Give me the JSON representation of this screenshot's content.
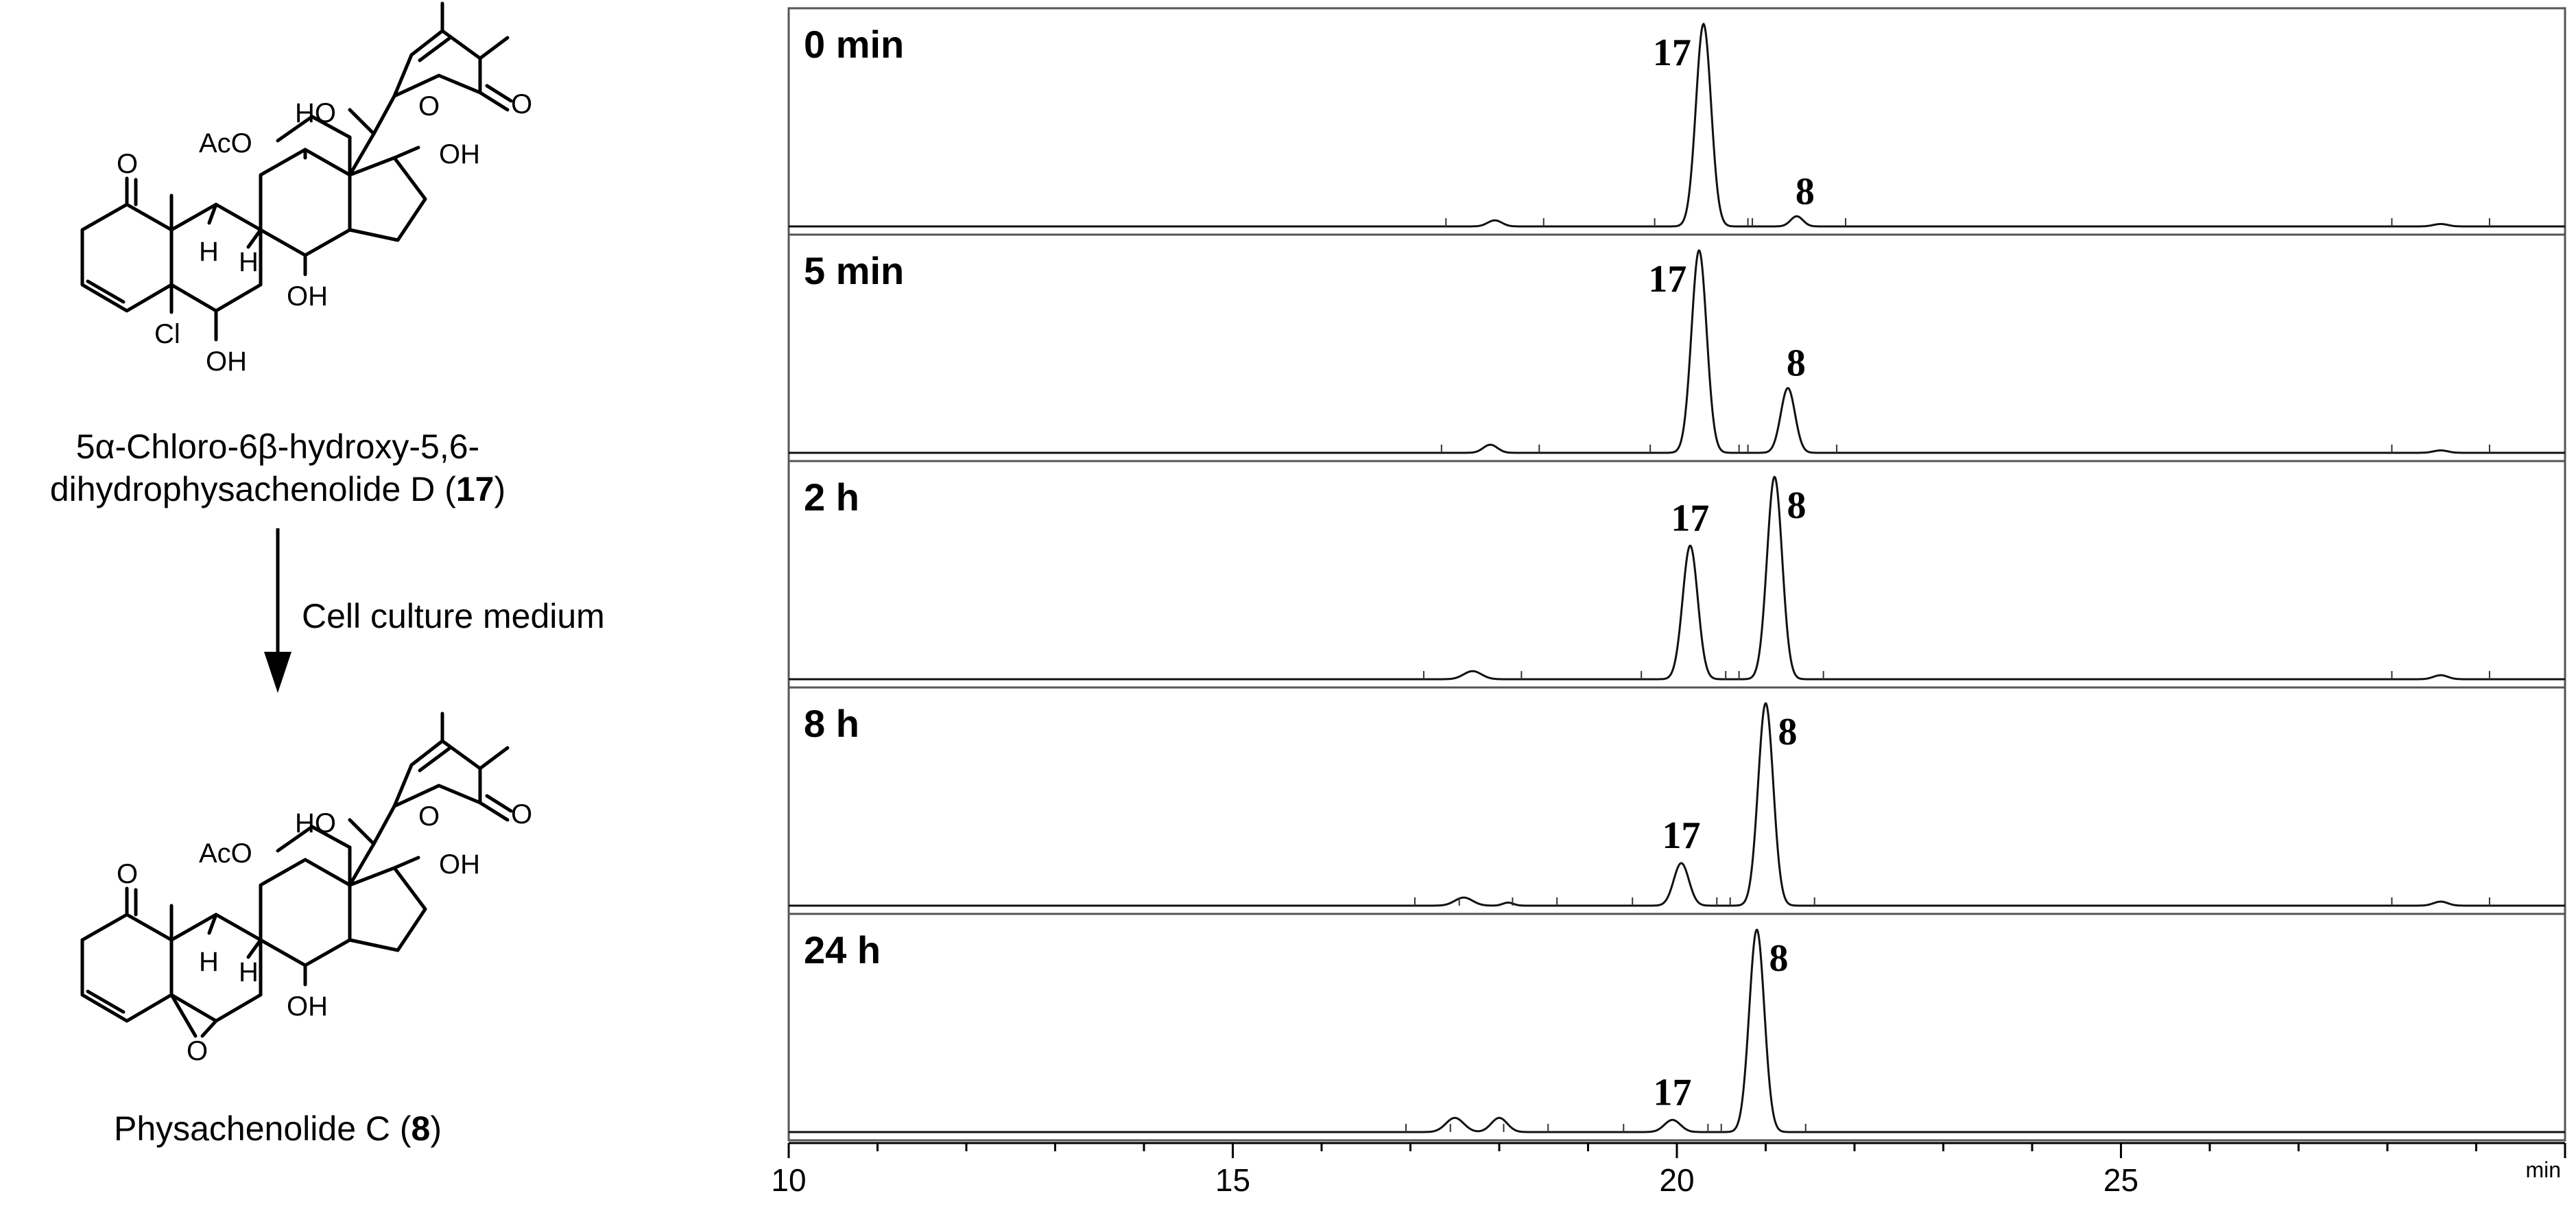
{
  "scheme": {
    "compound_17_name_line1": "5α-Chloro-6β-hydroxy-5,6-",
    "compound_17_name_line2": "dihydrophysachenolide D (",
    "compound_17_number": "17",
    "compound_17_close": ")",
    "arrow_label": "Cell culture medium",
    "compound_8_name": "Physachenolide C (",
    "compound_8_number": "8",
    "compound_8_close": ")",
    "struct_labels": {
      "acetoxy": "AcO",
      "ho": "HO",
      "oh": "OH",
      "o": "O",
      "h": "H",
      "cl": "Cl"
    }
  },
  "chart_data": {
    "type": "line",
    "xlim": [
      10,
      30
    ],
    "x_ticks": [
      10,
      15,
      20,
      25
    ],
    "x_unit": "min",
    "panels": [
      {
        "label": "0 min",
        "peaks": [
          {
            "x": 17.95,
            "h": 0.03,
            "w": 0.08
          },
          {
            "x": 20.3,
            "h": 1.0,
            "w": 0.085,
            "label": "17"
          },
          {
            "x": 21.35,
            "h": 0.05,
            "w": 0.07,
            "label": "8"
          },
          {
            "x": 28.6,
            "h": 0.012,
            "w": 0.08
          }
        ]
      },
      {
        "label": "5 min",
        "peaks": [
          {
            "x": 17.9,
            "h": 0.04,
            "w": 0.08
          },
          {
            "x": 20.25,
            "h": 1.0,
            "w": 0.085,
            "label": "17"
          },
          {
            "x": 21.25,
            "h": 0.32,
            "w": 0.08,
            "label": "8"
          },
          {
            "x": 28.6,
            "h": 0.012,
            "w": 0.08
          }
        ]
      },
      {
        "label": "2 h",
        "peaks": [
          {
            "x": 17.7,
            "h": 0.04,
            "w": 0.1
          },
          {
            "x": 20.15,
            "h": 0.66,
            "w": 0.085,
            "label": "17"
          },
          {
            "x": 21.1,
            "h": 1.0,
            "w": 0.085,
            "label": "8"
          },
          {
            "x": 28.6,
            "h": 0.02,
            "w": 0.08
          }
        ]
      },
      {
        "label": "8 h",
        "peaks": [
          {
            "x": 17.6,
            "h": 0.04,
            "w": 0.1
          },
          {
            "x": 18.1,
            "h": 0.015,
            "w": 0.06
          },
          {
            "x": 20.05,
            "h": 0.21,
            "w": 0.085,
            "label": "17"
          },
          {
            "x": 21.0,
            "h": 1.0,
            "w": 0.085,
            "label": "8"
          },
          {
            "x": 28.6,
            "h": 0.02,
            "w": 0.08
          }
        ]
      },
      {
        "label": "24 h",
        "peaks": [
          {
            "x": 17.5,
            "h": 0.07,
            "w": 0.1
          },
          {
            "x": 18.0,
            "h": 0.07,
            "w": 0.09
          },
          {
            "x": 19.95,
            "h": 0.06,
            "w": 0.09,
            "label": "17"
          },
          {
            "x": 20.9,
            "h": 1.0,
            "w": 0.085,
            "label": "8"
          }
        ]
      }
    ]
  }
}
